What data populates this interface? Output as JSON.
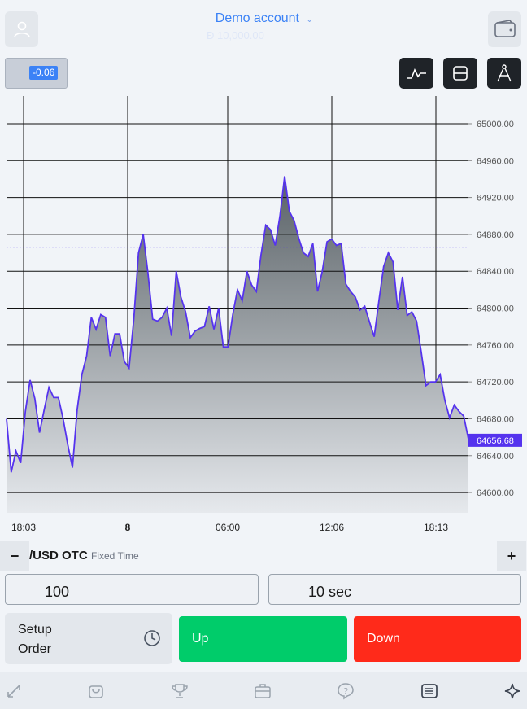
{
  "header": {
    "account_title": "Demo account",
    "balance": "Đ 10,000.00",
    "profile_icon": "user-icon",
    "wallet_icon": "wallet-icon"
  },
  "change": {
    "value": "-0.06"
  },
  "tools": [
    "line-chart-icon",
    "panel-icon",
    "compass-icon"
  ],
  "chart_data": {
    "type": "area",
    "x_ticks": [
      "18:03",
      "8",
      "06:00",
      "12:06",
      "18:13"
    ],
    "y_ticks": [
      "65000.00",
      "64960.00",
      "64920.00",
      "64880.00",
      "64840.00",
      "64800.00",
      "64760.00",
      "64720.00",
      "64680.00",
      "64640.00",
      "64600.00"
    ],
    "ylim": [
      64578,
      65030
    ],
    "current_price": "64656.68",
    "reference_price": 64866,
    "grid": true,
    "line_color": "#5533ee",
    "values": [
      64680,
      64622,
      64645,
      64632,
      64688,
      64722,
      64702,
      64665,
      64690,
      64714,
      64703,
      64703,
      64680,
      64652,
      64627,
      64690,
      64728,
      64748,
      64790,
      64777,
      64793,
      64790,
      64748,
      64772,
      64772,
      64742,
      64735,
      64788,
      64860,
      64880,
      64838,
      64788,
      64786,
      64790,
      64800,
      64770,
      64840,
      64812,
      64796,
      64768,
      64775,
      64778,
      64780,
      64802,
      64777,
      64800,
      64758,
      64758,
      64793,
      64820,
      64808,
      64840,
      64825,
      64818,
      64858,
      64890,
      64885,
      64868,
      64900,
      64943,
      64905,
      64895,
      64876,
      64860,
      64856,
      64870,
      64818,
      64840,
      64872,
      64875,
      64868,
      64870,
      64826,
      64818,
      64812,
      64798,
      64802,
      64785,
      64769,
      64808,
      64845,
      64860,
      64850,
      64798,
      64834,
      64792,
      64796,
      64786,
      64752,
      64716,
      64720,
      64720,
      64728,
      64700,
      64681,
      64695,
      64688,
      64683,
      64658
    ]
  },
  "asset": {
    "name": "/USD OTC",
    "type": "Fixed Time",
    "minus": "−",
    "plus": "+"
  },
  "amount": {
    "value": "100"
  },
  "duration": {
    "value": "10 sec"
  },
  "setup": {
    "line1": "Setup",
    "line2": "Order"
  },
  "up": {
    "label": "Up",
    "color": "#00cc6a"
  },
  "down": {
    "label": "Down",
    "color": "#ff2a1a"
  },
  "nav": [
    "arrows-icon",
    "bag-icon",
    "trophy-icon",
    "briefcase-icon",
    "help-icon",
    "news-icon",
    "star-icon"
  ]
}
